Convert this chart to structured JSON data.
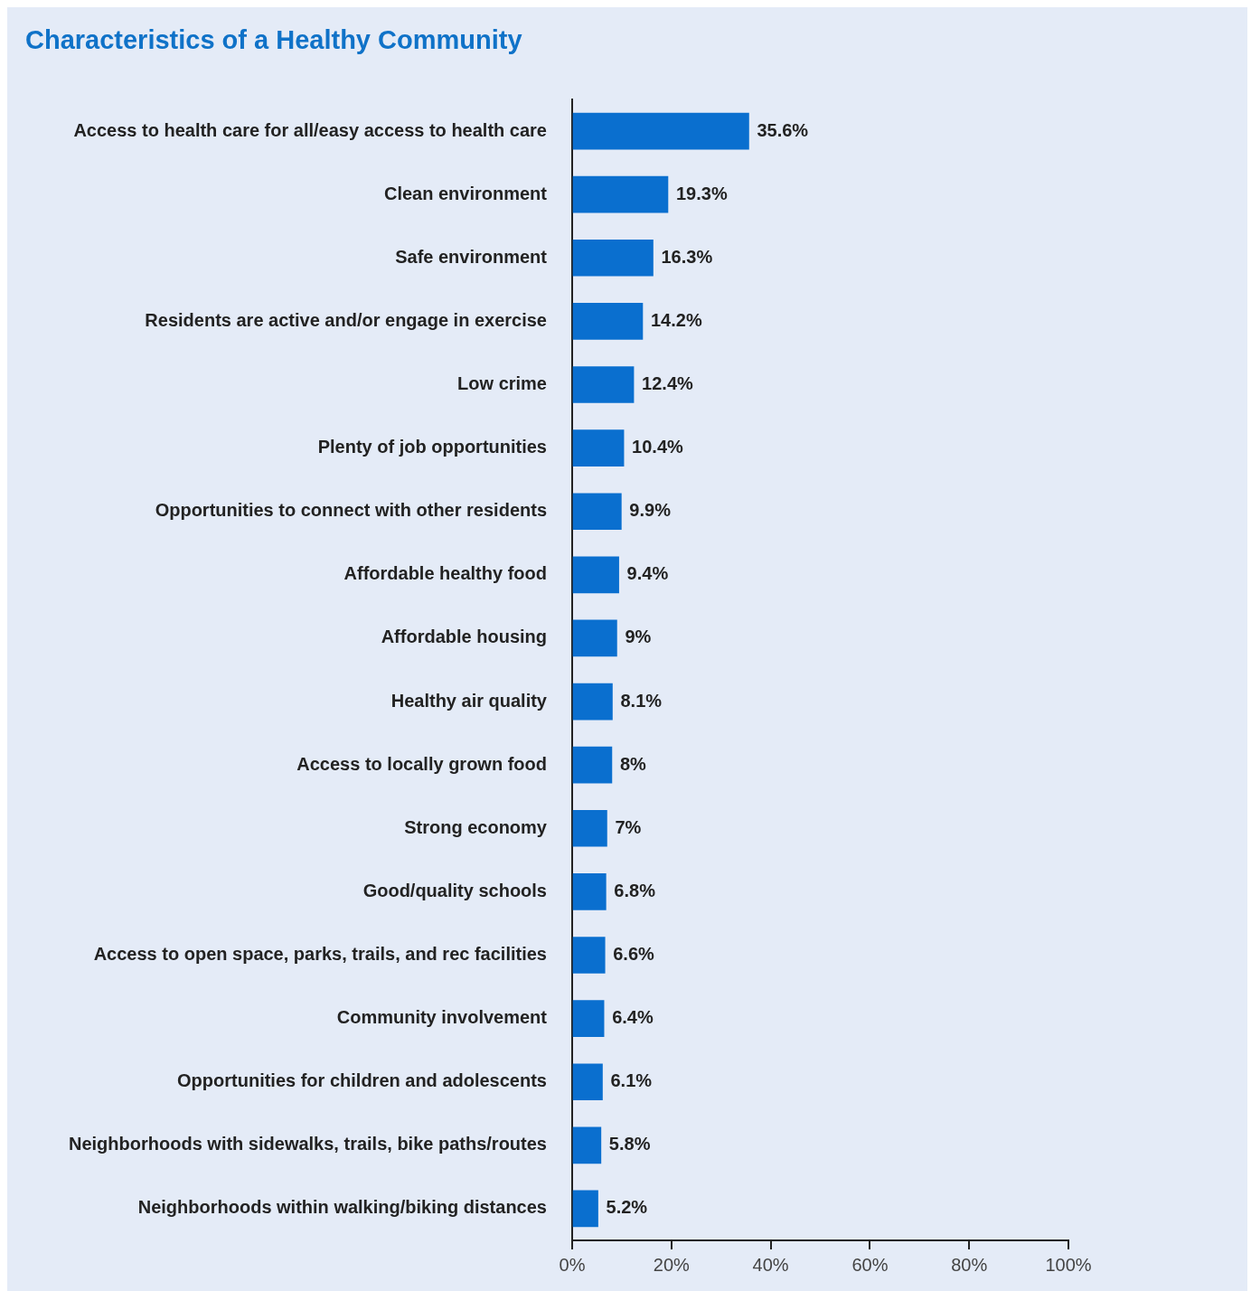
{
  "chart_data": {
    "type": "bar",
    "orientation": "horizontal",
    "title": "Characteristics of a Healthy Community",
    "categories": [
      "Access to health care for all/easy access to health care",
      "Clean environment",
      "Safe environment",
      "Residents are active and/or engage in exercise",
      "Low crime",
      "Plenty of job opportunities",
      "Opportunities to connect with other residents",
      "Affordable healthy food",
      "Affordable housing",
      "Healthy air quality",
      "Access to locally grown food",
      "Strong economy",
      "Good/quality schools",
      "Access to open space, parks, trails, and rec facilities",
      "Community involvement",
      "Opportunities for children and adolescents",
      "Neighborhoods with sidewalks, trails, bike paths/routes",
      "Neighborhoods within walking/biking distances"
    ],
    "values": [
      35.6,
      19.3,
      16.3,
      14.2,
      12.4,
      10.4,
      9.9,
      9.4,
      9,
      8.1,
      8,
      7,
      6.8,
      6.6,
      6.4,
      6.1,
      5.8,
      5.2
    ],
    "value_labels": [
      "35.6%",
      "19.3%",
      "16.3%",
      "14.2%",
      "12.4%",
      "10.4%",
      "9.9%",
      "9.4%",
      "9%",
      "8.1%",
      "8%",
      "7%",
      "6.8%",
      "6.6%",
      "6.4%",
      "6.1%",
      "5.8%",
      "5.2%"
    ],
    "color": "#0a6fcf",
    "xlim": [
      0,
      100
    ],
    "xticks": [
      {
        "value": 0,
        "label": "0%"
      },
      {
        "value": 20,
        "label": "20%"
      },
      {
        "value": 40,
        "label": "40%"
      },
      {
        "value": 60,
        "label": "60%"
      },
      {
        "value": 80,
        "label": "80%"
      },
      {
        "value": 100,
        "label": "100%"
      }
    ]
  }
}
